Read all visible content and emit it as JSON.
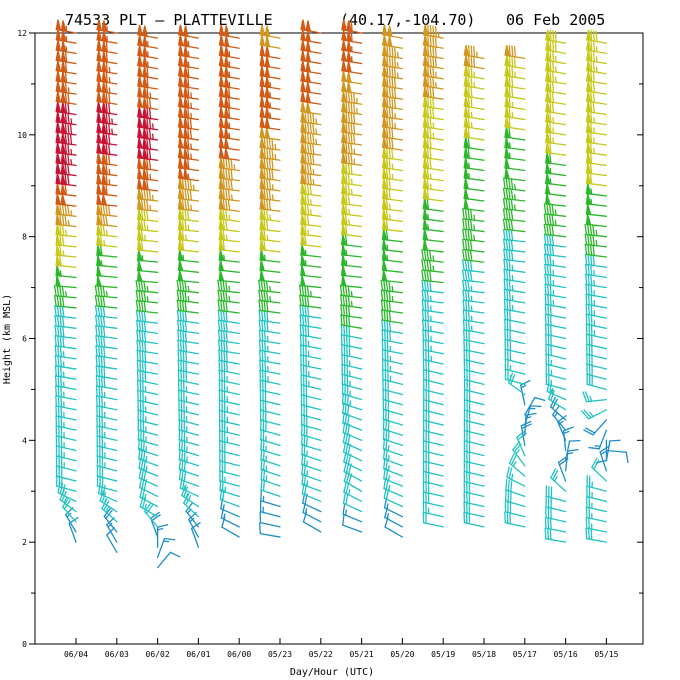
{
  "chart_data": {
    "type": "wind-barb-profile",
    "title": {
      "station": "74533  PLT — PLATTEVILLE",
      "coords": "(40.17,-104.70)",
      "date": "06 Feb 2005"
    },
    "xlabel": "Day/Hour (UTC)",
    "ylabel": "Height (km MSL)",
    "ylim": [
      0,
      12
    ],
    "yticks": [
      "0",
      "2",
      "4",
      "6",
      "8",
      "10",
      "12"
    ],
    "x_categories": [
      "06/04",
      "06/03",
      "06/02",
      "06/01",
      "06/00",
      "05/23",
      "05/22",
      "05/21",
      "05/20",
      "05/19",
      "05/18",
      "05/17",
      "05/16",
      "05/15"
    ],
    "speed_color_scale": [
      {
        "max_kt": 20,
        "color": "#1c8ec8"
      },
      {
        "max_kt": 40,
        "color": "#22c3c3"
      },
      {
        "max_kt": 60,
        "color": "#2ab82a"
      },
      {
        "max_kt": 80,
        "color": "#c8c81c"
      },
      {
        "max_kt": 100,
        "color": "#d2961e"
      },
      {
        "max_kt": 120,
        "color": "#d25a14"
      },
      {
        "max_kt": 999,
        "color": "#c81432"
      }
    ],
    "profiles": [
      {
        "time": "06/04",
        "base_km": 2.0,
        "top_km": 12.0,
        "speeds_kt": [
          [
            2,
            10
          ],
          [
            2.5,
            25
          ],
          [
            3.5,
            35
          ],
          [
            5,
            35
          ],
          [
            6.5,
            40
          ],
          [
            7,
            50
          ],
          [
            8,
            75
          ],
          [
            9,
            120
          ],
          [
            10,
            130
          ],
          [
            11,
            110
          ],
          [
            12,
            105
          ]
        ],
        "dirs_deg": [
          [
            2,
            340
          ],
          [
            3,
            285
          ],
          [
            5,
            280
          ],
          [
            7,
            275
          ],
          [
            12,
            280
          ]
        ]
      },
      {
        "time": "06/03",
        "base_km": 1.8,
        "top_km": 12.0,
        "speeds_kt": [
          [
            1.8,
            10
          ],
          [
            2.5,
            25
          ],
          [
            3.5,
            35
          ],
          [
            6.5,
            40
          ],
          [
            7.5,
            55
          ],
          [
            8.2,
            80
          ],
          [
            8.8,
            110
          ],
          [
            10,
            125
          ],
          [
            11,
            115
          ],
          [
            12,
            105
          ]
        ],
        "dirs_deg": [
          [
            2,
            330
          ],
          [
            3,
            285
          ],
          [
            5,
            280
          ],
          [
            7,
            275
          ],
          [
            12,
            280
          ]
        ]
      },
      {
        "time": "06/02",
        "base_km": 1.5,
        "top_km": 12.0,
        "speeds_kt": [
          [
            1.5,
            12
          ],
          [
            2.5,
            25
          ],
          [
            3.5,
            35
          ],
          [
            6.5,
            40
          ],
          [
            7.5,
            55
          ],
          [
            8.5,
            85
          ],
          [
            9,
            115
          ],
          [
            10,
            125
          ],
          [
            11,
            110
          ],
          [
            12,
            100
          ]
        ],
        "dirs_deg": [
          [
            1.5,
            40
          ],
          [
            2.5,
            300
          ],
          [
            4,
            285
          ],
          [
            7,
            275
          ],
          [
            12,
            280
          ]
        ]
      },
      {
        "time": "06/01",
        "base_km": 1.9,
        "top_km": 12.0,
        "speeds_kt": [
          [
            1.9,
            12
          ],
          [
            2.5,
            20
          ],
          [
            3.5,
            35
          ],
          [
            6.5,
            40
          ],
          [
            7.5,
            55
          ],
          [
            8.5,
            85
          ],
          [
            9.5,
            115
          ],
          [
            10,
            120
          ],
          [
            11,
            110
          ],
          [
            12,
            100
          ]
        ],
        "dirs_deg": [
          [
            1.9,
            340
          ],
          [
            3,
            290
          ],
          [
            5,
            282
          ],
          [
            7,
            276
          ],
          [
            12,
            280
          ]
        ]
      },
      {
        "time": "06/00",
        "base_km": 2.1,
        "top_km": 12.0,
        "speeds_kt": [
          [
            2.1,
            10
          ],
          [
            3,
            25
          ],
          [
            4,
            35
          ],
          [
            6.5,
            40
          ],
          [
            7.5,
            55
          ],
          [
            8.5,
            80
          ],
          [
            9.5,
            100
          ],
          [
            10.5,
            110
          ],
          [
            12,
            100
          ]
        ],
        "dirs_deg": [
          [
            2.1,
            300
          ],
          [
            3,
            285
          ],
          [
            5,
            282
          ],
          [
            7,
            276
          ],
          [
            12,
            280
          ]
        ]
      },
      {
        "time": "05/23",
        "base_km": 2.1,
        "top_km": 12.0,
        "speeds_kt": [
          [
            2.1,
            8
          ],
          [
            3,
            22
          ],
          [
            4.5,
            30
          ],
          [
            6.5,
            40
          ],
          [
            7.5,
            55
          ],
          [
            8.5,
            80
          ],
          [
            9.5,
            95
          ],
          [
            10.5,
            105
          ],
          [
            12,
            98
          ]
        ],
        "dirs_deg": [
          [
            2.1,
            280
          ],
          [
            3,
            290
          ],
          [
            5,
            282
          ],
          [
            7,
            276
          ],
          [
            12,
            280
          ]
        ]
      },
      {
        "time": "05/22",
        "base_km": 2.2,
        "top_km": 12.0,
        "speeds_kt": [
          [
            2.2,
            10
          ],
          [
            3,
            25
          ],
          [
            4.5,
            30
          ],
          [
            6.5,
            40
          ],
          [
            7.5,
            55
          ],
          [
            8.5,
            75
          ],
          [
            9.5,
            90
          ],
          [
            10.5,
            100
          ],
          [
            12,
            100
          ]
        ],
        "dirs_deg": [
          [
            2.2,
            300
          ],
          [
            3,
            290
          ],
          [
            5,
            283
          ],
          [
            7,
            276
          ],
          [
            12,
            280
          ]
        ]
      },
      {
        "time": "05/21",
        "base_km": 2.2,
        "top_km": 12.0,
        "speeds_kt": [
          [
            2.2,
            12
          ],
          [
            3,
            28
          ],
          [
            4.5,
            32
          ],
          [
            6.5,
            42
          ],
          [
            7.5,
            55
          ],
          [
            8.5,
            68
          ],
          [
            9.5,
            85
          ],
          [
            10.5,
            95
          ],
          [
            12,
            110
          ]
        ],
        "dirs_deg": [
          [
            2.2,
            290
          ],
          [
            3,
            300
          ],
          [
            5,
            285
          ],
          [
            7,
            276
          ],
          [
            12,
            280
          ]
        ]
      },
      {
        "time": "05/20",
        "base_km": 2.1,
        "top_km": 12.0,
        "speeds_kt": [
          [
            2.1,
            10
          ],
          [
            3,
            25
          ],
          [
            4.5,
            30
          ],
          [
            6.5,
            42
          ],
          [
            7.5,
            55
          ],
          [
            8.5,
            65
          ],
          [
            9.5,
            78
          ],
          [
            10.5,
            88
          ],
          [
            12,
            100
          ]
        ],
        "dirs_deg": [
          [
            2.1,
            300
          ],
          [
            3,
            292
          ],
          [
            5,
            284
          ],
          [
            7,
            276
          ],
          [
            12,
            280
          ]
        ]
      },
      {
        "time": "05/19",
        "base_km": 2.3,
        "top_km": 12.0,
        "speeds_kt": [
          [
            2.3,
            22
          ],
          [
            3,
            32
          ],
          [
            4.5,
            30
          ],
          [
            6.5,
            35
          ],
          [
            7.5,
            45
          ],
          [
            8.5,
            58
          ],
          [
            9.5,
            70
          ],
          [
            10.5,
            80
          ],
          [
            12,
            95
          ]
        ],
        "dirs_deg": [
          [
            2.3,
            282
          ],
          [
            5,
            284
          ],
          [
            7,
            276
          ],
          [
            12,
            280
          ]
        ]
      },
      {
        "time": "05/18",
        "base_km": 2.3,
        "top_km": 11.6,
        "speeds_kt": [
          [
            2.3,
            30
          ],
          [
            3.5,
            32
          ],
          [
            5,
            28
          ],
          [
            6.5,
            35
          ],
          [
            7.5,
            40
          ],
          [
            8.5,
            48
          ],
          [
            9.5,
            58
          ],
          [
            10.5,
            68
          ],
          [
            11.6,
            85
          ]
        ],
        "dirs_deg": [
          [
            2.3,
            282
          ],
          [
            5,
            284
          ],
          [
            7,
            276
          ],
          [
            11.6,
            280
          ]
        ]
      },
      {
        "time": "05/17",
        "base_km": 2.3,
        "top_km": 11.6,
        "speeds_kt": [
          [
            2.3,
            28
          ],
          [
            3,
            28
          ],
          [
            4.5,
            12
          ],
          [
            5,
            25
          ],
          [
            7,
            35
          ],
          [
            8,
            40
          ],
          [
            9,
            48
          ],
          [
            10,
            60
          ],
          [
            11.6,
            82
          ]
        ],
        "dirs_deg": [
          [
            2.3,
            282
          ],
          [
            3,
            290
          ],
          [
            4.5,
            30
          ],
          [
            5,
            285
          ],
          [
            8,
            276
          ],
          [
            11.6,
            280
          ]
        ]
      },
      {
        "time": "05/16",
        "base_km": 2.0,
        "top_km": 11.8,
        "speeds_kt": [
          [
            2,
            28
          ],
          [
            2.8,
            30
          ],
          [
            3.5,
            12
          ],
          [
            4.2,
            15
          ],
          [
            5,
            25
          ],
          [
            7,
            35
          ],
          [
            8,
            40
          ],
          [
            9,
            55
          ],
          [
            10,
            65
          ],
          [
            11.8,
            80
          ]
        ],
        "dirs_deg": [
          [
            2,
            280
          ],
          [
            2.8,
            285
          ],
          [
            3.5,
            20
          ],
          [
            4.2,
            320
          ],
          [
            5,
            285
          ],
          [
            8,
            276
          ],
          [
            11.8,
            280
          ]
        ]
      },
      {
        "time": "05/15",
        "base_km": 2.0,
        "top_km": 11.8,
        "speeds_kt": [
          [
            2,
            28
          ],
          [
            3,
            25
          ],
          [
            3.6,
            12
          ],
          [
            4,
            12
          ],
          [
            5,
            30
          ],
          [
            7,
            35
          ],
          [
            8,
            45
          ],
          [
            9,
            60
          ],
          [
            10,
            65
          ],
          [
            11.8,
            78
          ]
        ],
        "dirs_deg": [
          [
            2,
            280
          ],
          [
            3,
            285
          ],
          [
            3.6,
            10
          ],
          [
            4,
            180
          ],
          [
            5,
            285
          ],
          [
            8,
            276
          ],
          [
            11.8,
            280
          ]
        ]
      }
    ]
  }
}
